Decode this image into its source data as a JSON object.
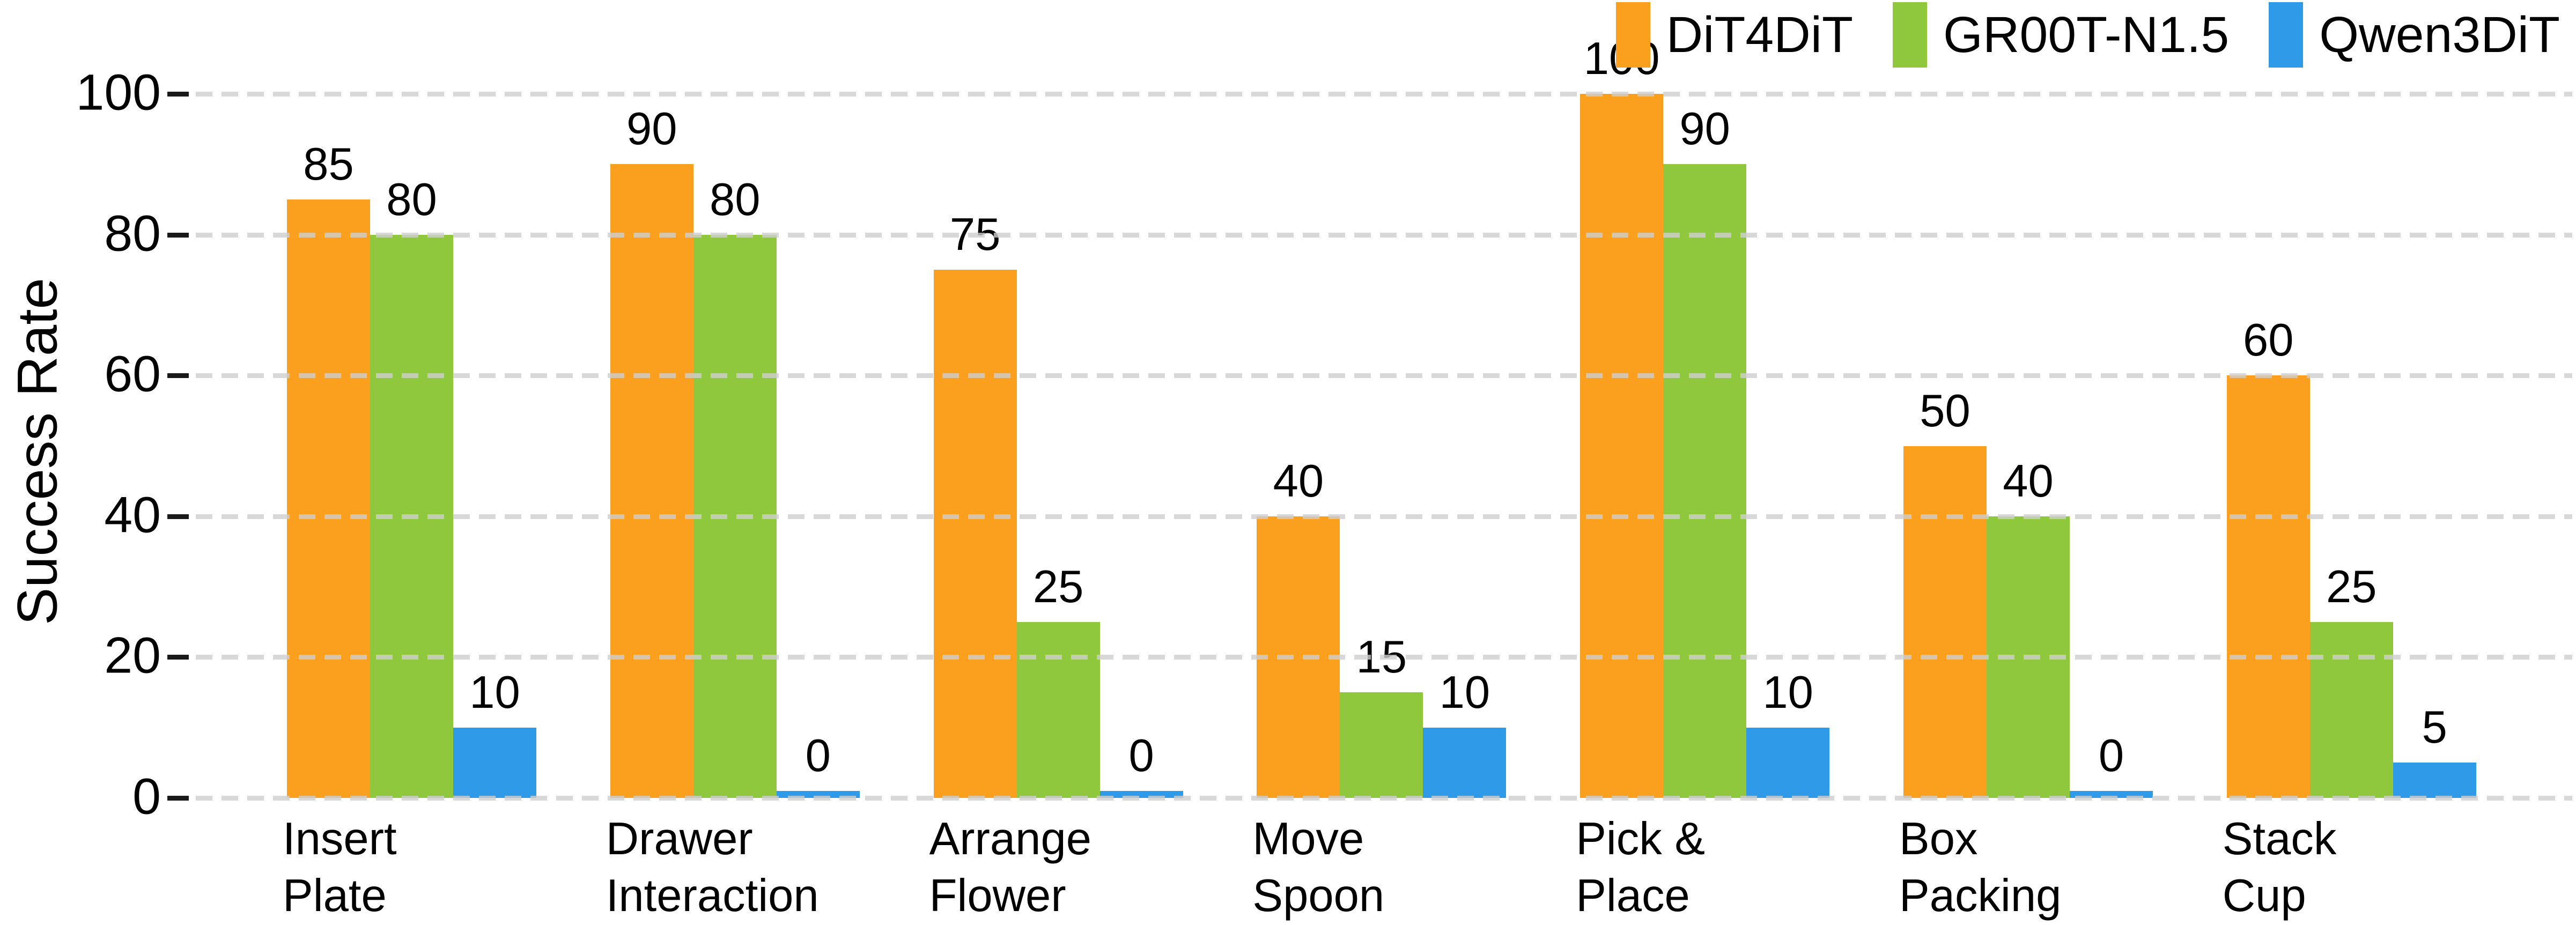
{
  "chart_data": {
    "type": "bar",
    "title": "",
    "xlabel": "",
    "ylabel": "Success Rate",
    "ylim": [
      0,
      100
    ],
    "yticks": [
      0,
      20,
      40,
      60,
      80,
      100
    ],
    "grid": "horizontal-dashed",
    "grid_color": "#d3d3d3",
    "legend_position": "top-right",
    "value_labels_shown": true,
    "categories": [
      "Insert Plate",
      "Drawer Interaction",
      "Arrange Flower",
      "Move Spoon",
      "Pick & Place",
      "Box Packing",
      "Stack Cup"
    ],
    "category_label_lines": [
      [
        "Insert",
        "Plate"
      ],
      [
        "Drawer",
        "Interaction"
      ],
      [
        "Arrange",
        "Flower"
      ],
      [
        "Move",
        "Spoon"
      ],
      [
        "Pick &",
        "Place"
      ],
      [
        "Box",
        "Packing"
      ],
      [
        "Stack",
        "Cup"
      ]
    ],
    "series": [
      {
        "name": "DiT4DiT",
        "color": "#FAA01E",
        "values": [
          85,
          90,
          75,
          40,
          100,
          50,
          60
        ]
      },
      {
        "name": "GR00T-N1.5",
        "color": "#90C83D",
        "values": [
          80,
          80,
          25,
          15,
          90,
          40,
          25
        ]
      },
      {
        "name": "Qwen3DiT",
        "color": "#2F9BE8",
        "values": [
          10,
          0,
          0,
          10,
          10,
          0,
          5
        ]
      }
    ]
  }
}
